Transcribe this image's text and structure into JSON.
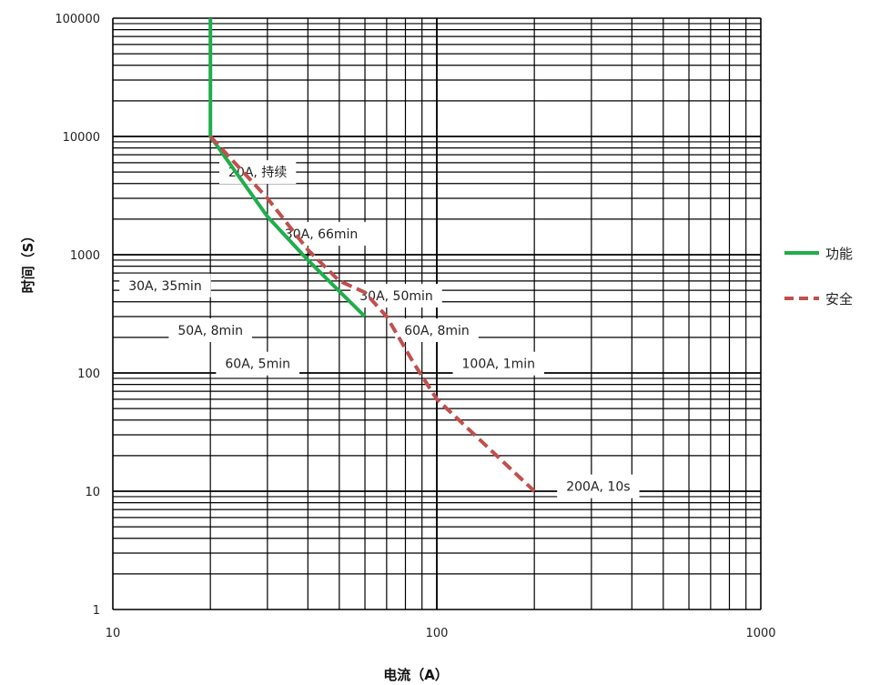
{
  "chart_data": {
    "type": "line",
    "xlabel": "电流（A）",
    "ylabel": "时间（S）",
    "xscale": "log",
    "yscale": "log",
    "xlim": [
      10,
      1000
    ],
    "ylim": [
      1,
      100000
    ],
    "x_ticks": [
      "10",
      "100",
      "1000"
    ],
    "y_ticks": [
      "1",
      "10",
      "100",
      "1000",
      "10000",
      "100000"
    ],
    "grid": true,
    "legend_position": "right",
    "series": [
      {
        "name": "功能",
        "color": "#1fae4b",
        "style": "solid",
        "points": [
          [
            20,
            100000
          ],
          [
            20,
            10000
          ],
          [
            30,
            2100
          ],
          [
            40,
            900
          ],
          [
            60,
            300
          ]
        ]
      },
      {
        "name": "安全",
        "color": "#c0504d",
        "style": "dashed",
        "points": [
          [
            20,
            10000
          ],
          [
            30,
            3000
          ],
          [
            40,
            1100
          ],
          [
            50,
            600
          ],
          [
            60,
            480
          ],
          [
            70,
            300
          ],
          [
            85,
            120
          ],
          [
            100,
            60
          ],
          [
            200,
            10
          ]
        ]
      }
    ],
    "annotations": [
      {
        "text": "20A, 持续",
        "x": 28,
        "y": 5000
      },
      {
        "text": "30A, 66min",
        "x": 44,
        "y": 1500
      },
      {
        "text": "30A, 35min",
        "x": 14.5,
        "y": 550
      },
      {
        "text": "30A, 50min",
        "x": 75,
        "y": 450
      },
      {
        "text": "50A, 8min",
        "x": 20,
        "y": 230
      },
      {
        "text": "60A, 8min",
        "x": 100,
        "y": 230
      },
      {
        "text": "60A, 5min",
        "x": 28,
        "y": 120
      },
      {
        "text": "100A, 1min",
        "x": 155,
        "y": 120
      },
      {
        "text": "200A, 10s",
        "x": 315,
        "y": 11
      }
    ]
  }
}
